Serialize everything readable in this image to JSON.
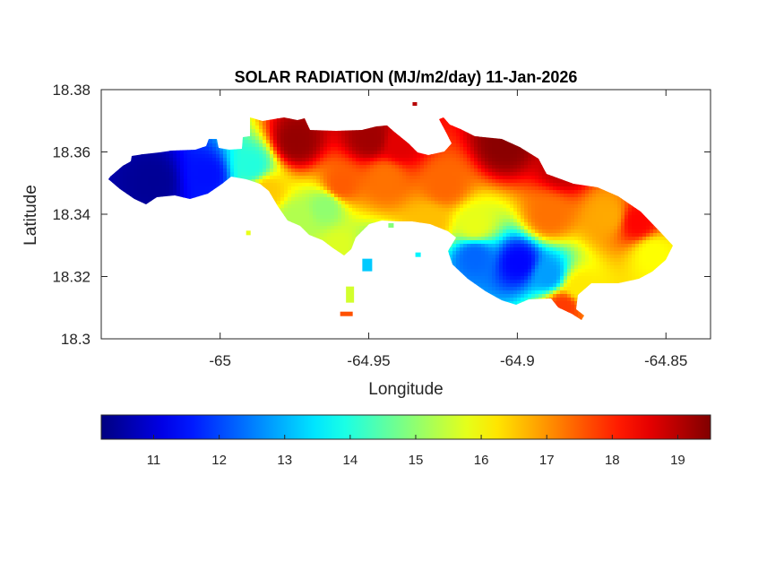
{
  "chart_data": {
    "type": "heatmap",
    "title": "SOLAR RADIATION (MJ/m2/day) 11-Jan-2026",
    "xlabel": "Longitude",
    "ylabel": "Latitude",
    "xlim": [
      -65.04,
      -64.835
    ],
    "ylim": [
      18.3,
      18.38
    ],
    "xticks": [
      "-65",
      "-64.95",
      "-64.9",
      "-64.85"
    ],
    "xtick_values": [
      -65,
      -64.95,
      -64.9,
      -64.85
    ],
    "yticks": [
      "18.38",
      "18.36",
      "18.34",
      "18.32",
      "18.3"
    ],
    "ytick_values": [
      18.38,
      18.36,
      18.34,
      18.32,
      18.3
    ],
    "colormap": "jet",
    "colorbar": {
      "range": [
        10.2,
        19.5
      ],
      "ticks": [
        "11",
        "12",
        "13",
        "14",
        "15",
        "16",
        "17",
        "18",
        "19"
      ],
      "tick_values": [
        11,
        12,
        13,
        14,
        15,
        16,
        17,
        18,
        19
      ],
      "location": "southoutside"
    },
    "grid": false,
    "field_hotspots": [
      {
        "lon": -65.023,
        "lat": 18.351,
        "value": 10.4
      },
      {
        "lon": -65.005,
        "lat": 18.353,
        "value": 11.5
      },
      {
        "lon": -64.99,
        "lat": 18.356,
        "value": 14.0
      },
      {
        "lon": -64.975,
        "lat": 18.364,
        "value": 19.3
      },
      {
        "lon": -64.95,
        "lat": 18.365,
        "value": 19.2
      },
      {
        "lon": -64.94,
        "lat": 18.363,
        "value": 18.6
      },
      {
        "lon": -64.905,
        "lat": 18.363,
        "value": 19.4
      },
      {
        "lon": -64.885,
        "lat": 18.356,
        "value": 18.9
      },
      {
        "lon": -64.87,
        "lat": 18.34,
        "value": 16.8
      },
      {
        "lon": -64.86,
        "lat": 18.338,
        "value": 18.3
      },
      {
        "lon": -64.855,
        "lat": 18.328,
        "value": 16.0
      },
      {
        "lon": -64.96,
        "lat": 18.35,
        "value": 17.5
      },
      {
        "lon": -64.945,
        "lat": 18.352,
        "value": 17.3
      },
      {
        "lon": -64.925,
        "lat": 18.35,
        "value": 17.4
      },
      {
        "lon": -64.965,
        "lat": 18.343,
        "value": 15.0
      },
      {
        "lon": -64.975,
        "lat": 18.339,
        "value": 15.3
      },
      {
        "lon": -64.96,
        "lat": 18.33,
        "value": 15.7
      },
      {
        "lon": -64.95,
        "lat": 18.325,
        "value": 13.6
      },
      {
        "lon": -64.915,
        "lat": 18.327,
        "value": 12.3
      },
      {
        "lon": -64.9,
        "lat": 18.325,
        "value": 11.4
      },
      {
        "lon": -64.89,
        "lat": 18.321,
        "value": 12.8
      },
      {
        "lon": -64.915,
        "lat": 18.337,
        "value": 15.8
      },
      {
        "lon": -64.88,
        "lat": 18.317,
        "value": 16.2
      },
      {
        "lon": -64.955,
        "lat": 18.318,
        "value": 14.5
      },
      {
        "lon": -64.955,
        "lat": 18.31,
        "value": 17.5
      },
      {
        "lon": -64.885,
        "lat": 18.311,
        "value": 17.8
      },
      {
        "lon": -64.89,
        "lat": 18.34,
        "value": 17.3
      },
      {
        "lon": -64.93,
        "lat": 18.338,
        "value": 16.6
      },
      {
        "lon": -64.985,
        "lat": 18.348,
        "value": 16.5
      }
    ]
  }
}
